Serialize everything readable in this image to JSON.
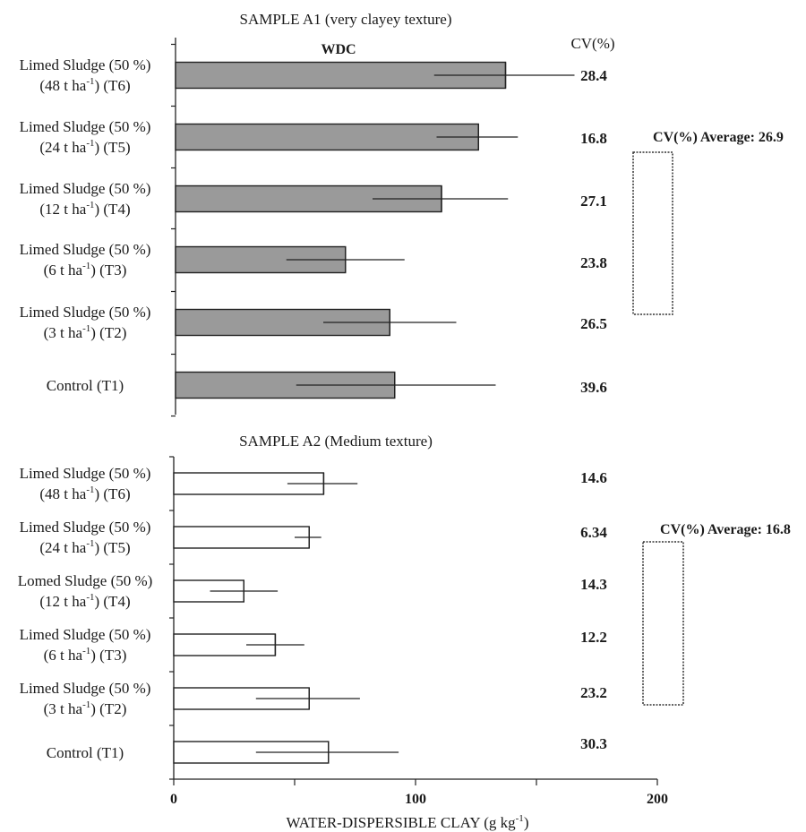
{
  "chart_data": [
    {
      "type": "bar",
      "orientation": "horizontal",
      "title": "SAMPLE A1 (very clayey texture)",
      "annotation": "WDC",
      "cv_header": "CV(%)",
      "cv_average_label": "CV(%) Average: 26.9",
      "bar_style": "gray",
      "categories": [
        {
          "line1": "Limed Sludge (50 %)",
          "pre": "(48 t ha",
          "sup": "-1",
          "post": ") (T6)"
        },
        {
          "line1": "Limed Sludge (50 %)",
          "pre": "(24 t ha",
          "sup": "-1",
          "post": ") (T5)"
        },
        {
          "line1": "Limed Sludge (50 %)",
          "pre": "(12 t ha",
          "sup": "-1",
          "post": ") (T4)"
        },
        {
          "line1": "Limed Sludge (50 %)",
          "pre": "(6 t ha",
          "sup": "-1",
          "post": ") (T3)"
        },
        {
          "line1": "Limed Sludge (50 %)",
          "pre": "(3 t ha",
          "sup": "-1",
          "post": ") (T2)"
        },
        {
          "line1": "Control (T1)",
          "pre": "",
          "sup": "",
          "post": ""
        }
      ],
      "values": [
        134,
        123,
        108,
        69,
        87,
        89
      ],
      "error_low": [
        105,
        106,
        80,
        45,
        60,
        49
      ],
      "error_high": [
        162,
        139,
        135,
        93,
        114,
        130
      ],
      "cv_values": [
        "28.4",
        "16.8",
        "27.1",
        "23.8",
        "26.5",
        "39.6"
      ],
      "xlim": [
        0,
        200
      ]
    },
    {
      "type": "bar",
      "orientation": "horizontal",
      "title": "SAMPLE A2 (Medium texture)",
      "cv_average_label": "CV(%) Average: 16.8",
      "bar_style": "white",
      "categories": [
        {
          "line1": "Limed Sludge (50 %)",
          "pre": "(48 t ha",
          "sup": "-1",
          "post": ") (T6)"
        },
        {
          "line1": "Limed Sludge (50 %)",
          "pre": "(24 t ha",
          "sup": "-1",
          "post": ") (T5)"
        },
        {
          "line1": "Lomed Sludge (50 %)",
          "pre": "(12 t ha",
          "sup": "-1",
          "post": ") (T4)"
        },
        {
          "line1": "Limed Sludge (50 %)",
          "pre": "(6 t ha",
          "sup": "-1",
          "post": ") (T3)"
        },
        {
          "line1": "Limed Sludge (50 %)",
          "pre": "(3 t ha",
          "sup": "-1",
          "post": ") (T2)"
        },
        {
          "line1": "Control (T1)",
          "pre": "",
          "sup": "",
          "post": ""
        }
      ],
      "values": [
        62,
        56,
        29,
        42,
        56,
        64
      ],
      "error_low": [
        47,
        50,
        15,
        30,
        34,
        34
      ],
      "error_high": [
        76,
        61,
        43,
        54,
        77,
        93
      ],
      "cv_values": [
        "14.6",
        "6.34",
        "14.3",
        "12.2",
        "23.2",
        "30.3"
      ],
      "xlim": [
        0,
        200
      ],
      "xticks": [
        "0",
        "100",
        "200"
      ],
      "xlabel_pre": "WATER-DISPERSIBLE CLAY (g kg",
      "xlabel_sup": "-1",
      "xlabel_post": ")"
    }
  ]
}
